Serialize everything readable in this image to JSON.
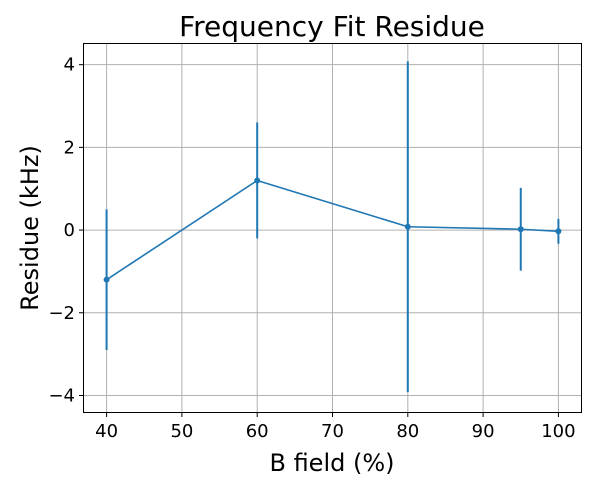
{
  "chart_data": {
    "type": "line",
    "title": "Frequency Fit Residue",
    "xlabel": "B field (%)",
    "ylabel": "Residue (kHz)",
    "xlim": [
      37,
      103
    ],
    "ylim": [
      -4.4,
      4.5
    ],
    "xticks": [
      40,
      50,
      60,
      70,
      80,
      90,
      100
    ],
    "yticks": [
      -4,
      -2,
      0,
      2,
      4
    ],
    "xtick_labels": [
      "40",
      "50",
      "60",
      "70",
      "80",
      "90",
      "100"
    ],
    "ytick_labels": [
      "−4",
      "−2",
      "0",
      "2",
      "4"
    ],
    "grid": true,
    "series": [
      {
        "color": "#1f77b4",
        "x": [
          40,
          60,
          80,
          95,
          100
        ],
        "y": [
          -1.2,
          1.2,
          0.08,
          0.02,
          -0.03
        ],
        "yerr": [
          1.7,
          1.4,
          4.0,
          1.0,
          0.3
        ]
      }
    ]
  }
}
